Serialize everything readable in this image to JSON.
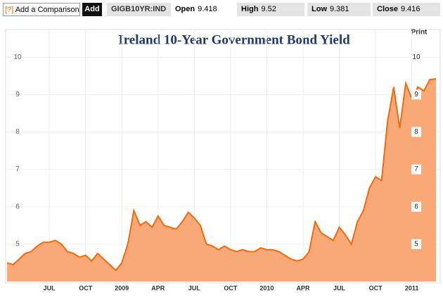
{
  "toolbar": {
    "help": "[?]",
    "comparison": "Add a Comparison",
    "button": "Add",
    "ticker": "GIGB10YR:IND",
    "quotes": [
      {
        "label": "Open",
        "value": "9.418"
      },
      {
        "label": "High",
        "value": "9.52"
      },
      {
        "label": "Low",
        "value": "9.381"
      },
      {
        "label": "Close",
        "value": "9.416"
      }
    ]
  },
  "print": "Print",
  "chart_data": {
    "type": "area",
    "title": "Ireland 10-Year Government Bond Yield",
    "categories": [
      null,
      null,
      null,
      null,
      null,
      null,
      null,
      "JUL",
      null,
      null,
      null,
      null,
      null,
      "OCT",
      null,
      null,
      null,
      null,
      null,
      "2009",
      null,
      null,
      null,
      null,
      null,
      "APR",
      null,
      null,
      null,
      null,
      null,
      "JUL",
      null,
      null,
      null,
      null,
      null,
      "OCT",
      null,
      null,
      null,
      null,
      null,
      "2010",
      null,
      null,
      null,
      null,
      null,
      "APR",
      null,
      null,
      null,
      null,
      null,
      "JUL",
      null,
      null,
      null,
      null,
      null,
      "OCT",
      null,
      null,
      null,
      null,
      null,
      "2011",
      null,
      null,
      null,
      null
    ],
    "values": [
      4.5,
      4.45,
      4.6,
      4.75,
      4.8,
      4.95,
      5.05,
      5.05,
      5.1,
      5.0,
      4.8,
      4.75,
      4.65,
      4.7,
      4.55,
      4.75,
      4.6,
      4.45,
      4.3,
      4.5,
      5.0,
      5.9,
      5.5,
      5.6,
      5.45,
      5.75,
      5.5,
      5.45,
      5.4,
      5.6,
      5.85,
      5.7,
      5.5,
      5.0,
      4.95,
      4.85,
      4.95,
      4.85,
      4.8,
      4.85,
      4.8,
      4.8,
      4.9,
      4.85,
      4.85,
      4.8,
      4.7,
      4.6,
      4.55,
      4.6,
      4.8,
      5.6,
      5.3,
      5.2,
      5.1,
      5.45,
      5.25,
      5.0,
      5.6,
      5.9,
      6.5,
      6.8,
      6.7,
      8.3,
      9.2,
      8.1,
      9.3,
      8.9,
      9.2,
      9.1,
      9.4,
      9.42
    ],
    "color": "#f26a10",
    "fill": "#f9a878",
    "ylim": [
      4.0,
      10.7
    ],
    "yticks": [
      5,
      6,
      7,
      8,
      9,
      10
    ],
    "grid": true
  }
}
